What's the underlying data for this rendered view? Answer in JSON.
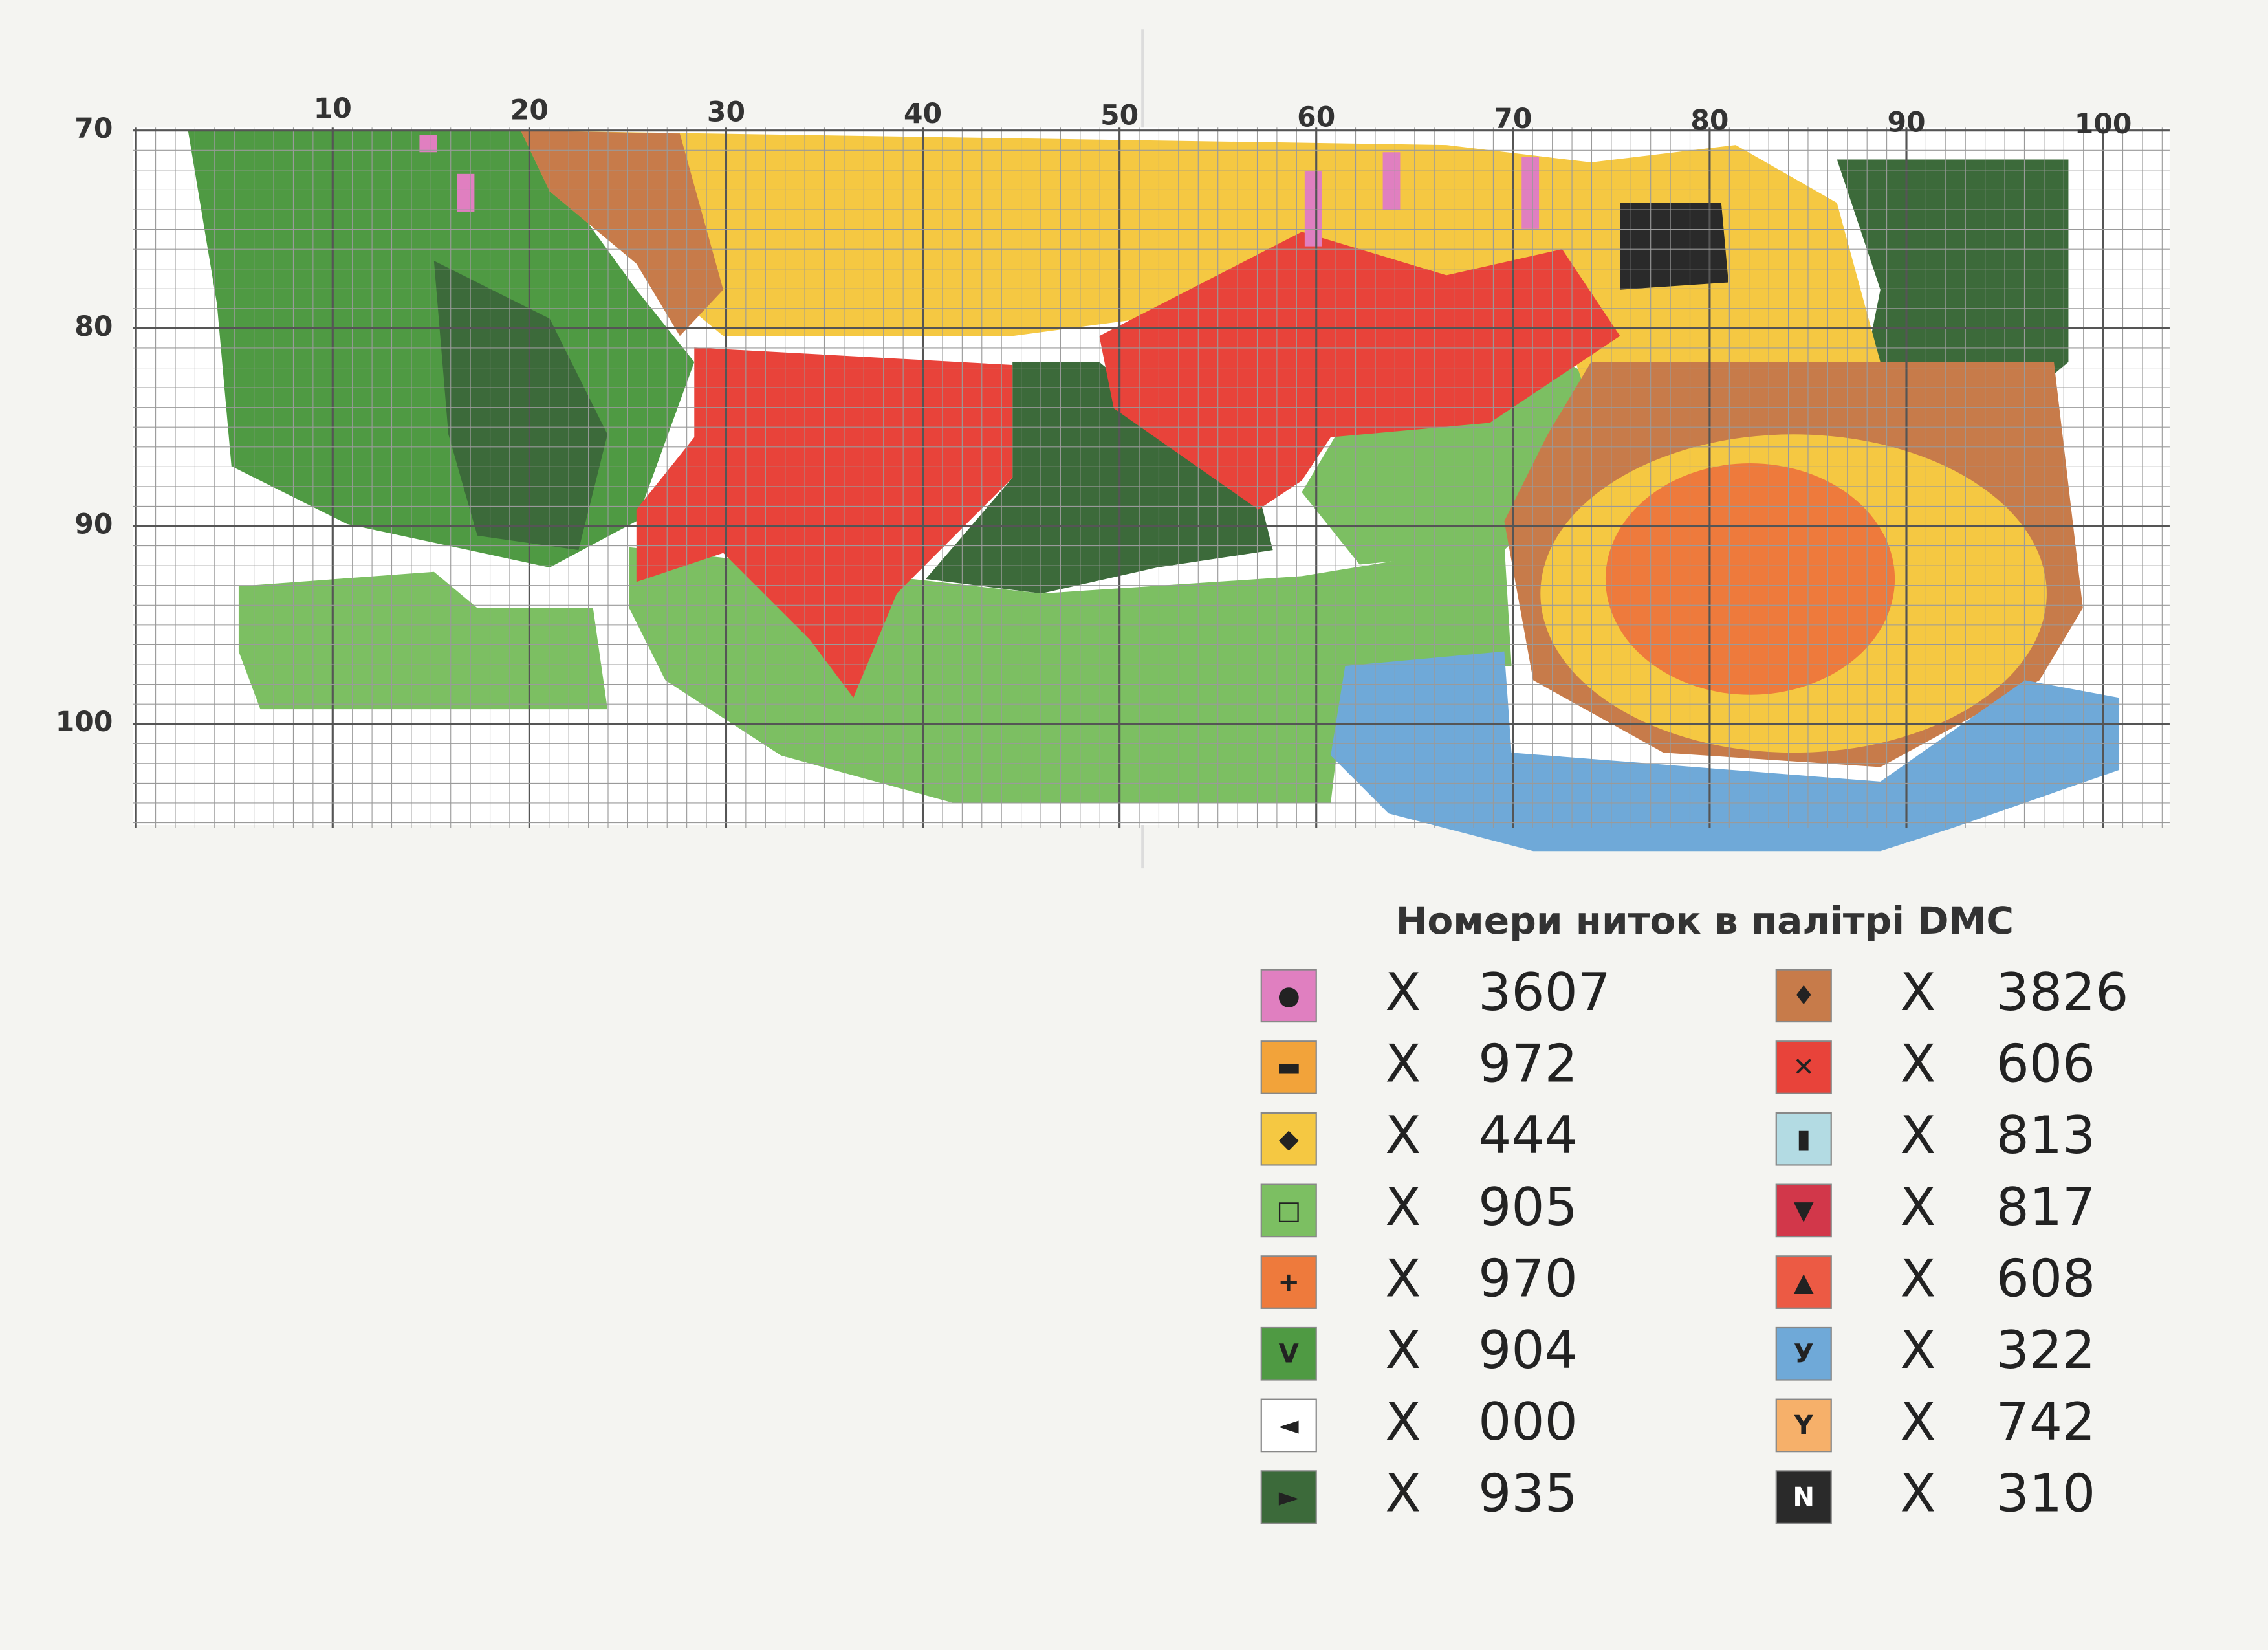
{
  "chart_header": null,
  "columns": [
    "10",
    "20",
    "30",
    "40",
    "50",
    "60",
    "70",
    "80",
    "90",
    "100"
  ],
  "rows": [
    "70",
    "80",
    "90",
    "100"
  ],
  "legend": {
    "title": "Номери ниток в палітрі DMC",
    "left": [
      {
        "symbol": "●",
        "stitch": "X",
        "code": "3607",
        "color": "#e07fc0"
      },
      {
        "symbol": "▬",
        "stitch": "X",
        "code": "972",
        "color": "#f2a33a"
      },
      {
        "symbol": "◆",
        "stitch": "X",
        "code": "444",
        "color": "#f5c842"
      },
      {
        "symbol": "□",
        "stitch": "X",
        "code": "905",
        "color": "#7cbf62"
      },
      {
        "symbol": "+",
        "stitch": "X",
        "code": "970",
        "color": "#ee7a3c"
      },
      {
        "symbol": "V",
        "stitch": "X",
        "code": "904",
        "color": "#4f9a43"
      },
      {
        "symbol": "◄",
        "stitch": "X",
        "code": "000",
        "color": "#ffffff"
      },
      {
        "symbol": "►",
        "stitch": "X",
        "code": "935",
        "color": "#3c6a3a"
      }
    ],
    "right": [
      {
        "symbol": "♦",
        "stitch": "X",
        "code": "3826",
        "color": "#c77b4a"
      },
      {
        "symbol": "✕",
        "stitch": "X",
        "code": "606",
        "color": "#e8433a"
      },
      {
        "symbol": "▮",
        "stitch": "X",
        "code": "813",
        "color": "#b3dbe3"
      },
      {
        "symbol": "▼",
        "stitch": "X",
        "code": "817",
        "color": "#d2374a"
      },
      {
        "symbol": "▲",
        "stitch": "X",
        "code": "608",
        "color": "#ec5a44"
      },
      {
        "symbol": "У",
        "stitch": "X",
        "code": "322",
        "color": "#6fa9d8"
      },
      {
        "symbol": "Y",
        "stitch": "X",
        "code": "742",
        "color": "#f6b06a"
      },
      {
        "symbol": "N",
        "stitch": "X",
        "code": "310",
        "color": "#2a2a2a"
      }
    ]
  }
}
